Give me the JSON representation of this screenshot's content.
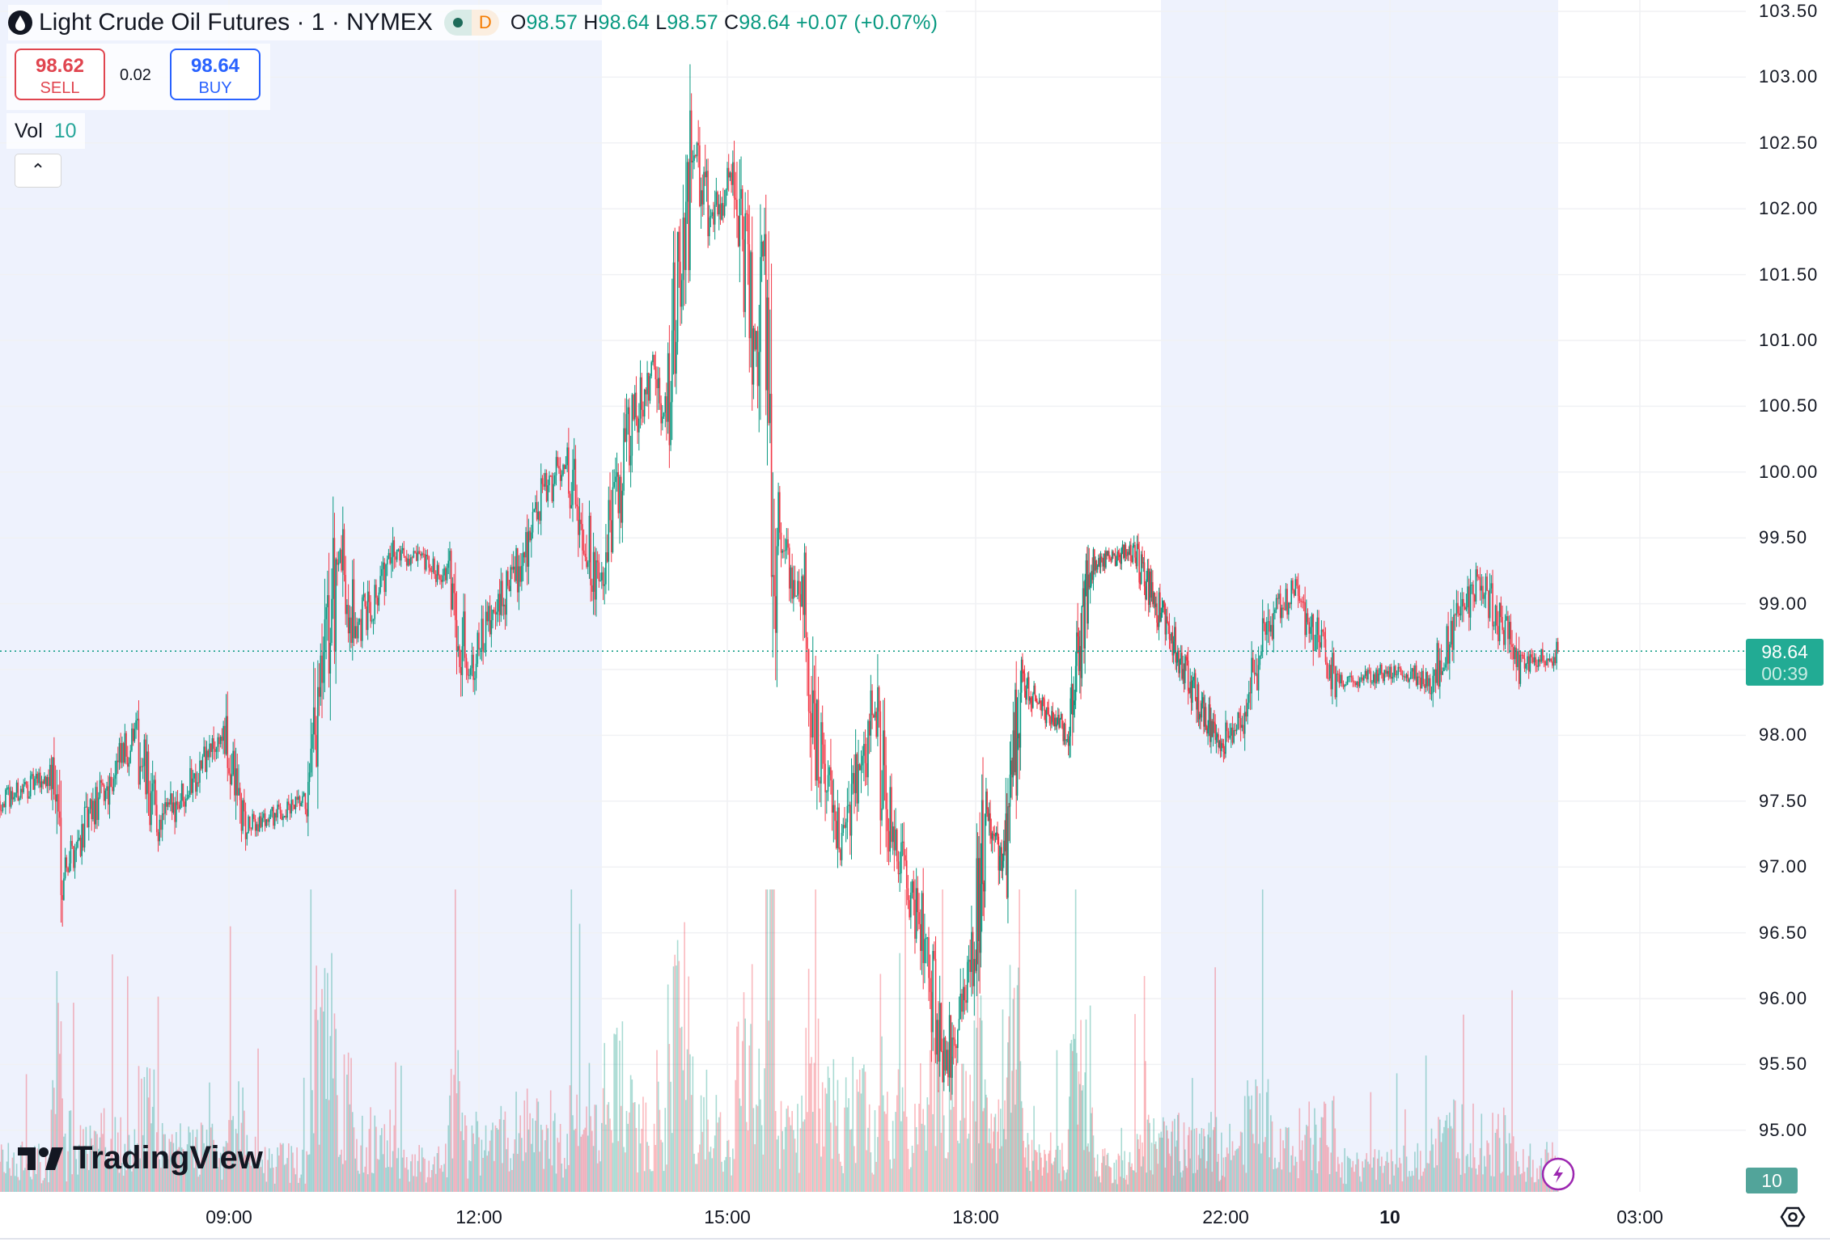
{
  "header": {
    "title": "Light Crude Oil Futures · 1 · NYMEX",
    "market_status_icon": "dot-icon",
    "delay_badge": "D",
    "ohlc": {
      "o_label": "O",
      "o": "98.57",
      "h_label": "H",
      "h": "98.64",
      "l_label": "L",
      "l": "98.57",
      "c_label": "C",
      "c": "98.64",
      "change": "+0.07 (+0.07%)"
    }
  },
  "trade": {
    "sell_price": "98.62",
    "sell_label": "SELL",
    "spread": "0.02",
    "buy_price": "98.64",
    "buy_label": "BUY"
  },
  "volume_legend": {
    "label": "Vol",
    "value": "10"
  },
  "logo": "TradingView",
  "colors": {
    "up": "#089981",
    "down": "#f23645",
    "session_shade": "#eef2fd",
    "sell": "#e0454f",
    "buy": "#2962ff"
  },
  "chart_data": {
    "type": "candlestick",
    "interval": "1 minute",
    "ylim": [
      94.8,
      103.6
    ],
    "y_ticks": [
      "103.50",
      "103.00",
      "102.50",
      "102.00",
      "101.50",
      "101.00",
      "100.50",
      "100.00",
      "99.50",
      "99.00",
      "98.50",
      "98.00",
      "97.50",
      "97.00",
      "96.50",
      "96.00",
      "95.50",
      "95.00"
    ],
    "x_ticks": [
      "09:00",
      "12:00",
      "15:00",
      "18:00",
      "22:00",
      "10",
      "03:00"
    ],
    "last_price": "98.64",
    "countdown": "00:39",
    "last_volume": "10",
    "grid": true,
    "price_path": [
      [
        "06:15",
        97.5
      ],
      [
        "06:53",
        97.7
      ],
      [
        "07:01",
        97.0
      ],
      [
        "07:52",
        98.0
      ],
      [
        "08:09",
        97.3
      ],
      [
        "08:55",
        98.0
      ],
      [
        "09:12",
        97.3
      ],
      [
        "09:58",
        97.5
      ],
      [
        "10:19",
        99.4
      ],
      [
        "10:32",
        98.8
      ],
      [
        "11:01",
        99.4
      ],
      [
        "11:39",
        99.2
      ],
      [
        "11:52",
        98.5
      ],
      [
        "12:25",
        99.2
      ],
      [
        "12:46",
        99.8
      ],
      [
        "13:03",
        100.1
      ],
      [
        "13:28",
        99.1
      ],
      [
        "13:49",
        100.3
      ],
      [
        "14:06",
        100.8
      ],
      [
        "14:15",
        100.4
      ],
      [
        "14:36",
        102.5
      ],
      [
        "14:48",
        101.9
      ],
      [
        "15:04",
        102.3
      ],
      [
        "15:21",
        100.9
      ],
      [
        "15:27",
        101.7
      ],
      [
        "15:35",
        99.5
      ],
      [
        "15:56",
        99.0
      ],
      [
        "16:05",
        98.0
      ],
      [
        "16:22",
        97.1
      ],
      [
        "16:47",
        98.2
      ],
      [
        "16:56",
        97.4
      ],
      [
        "17:21",
        96.5
      ],
      [
        "17:38",
        95.5
      ],
      [
        "17:59",
        96.4
      ],
      [
        "18:10",
        97.4
      ],
      [
        "18:27",
        97.0
      ],
      [
        "18:44",
        98.4
      ],
      [
        "19:29",
        98.0
      ],
      [
        "19:51",
        99.3
      ],
      [
        "20:30",
        99.4
      ],
      [
        "21:04",
        98.8
      ],
      [
        "21:54",
        97.9
      ],
      [
        "22:13",
        98.2
      ],
      [
        "22:34",
        98.9
      ],
      [
        "22:51",
        99.1
      ],
      [
        "23:21",
        98.4
      ],
      [
        "00:08",
        98.5
      ],
      [
        "00:29",
        98.4
      ],
      [
        "01:03",
        99.2
      ],
      [
        "01:36",
        98.5
      ],
      [
        "02:01",
        98.64
      ]
    ]
  }
}
